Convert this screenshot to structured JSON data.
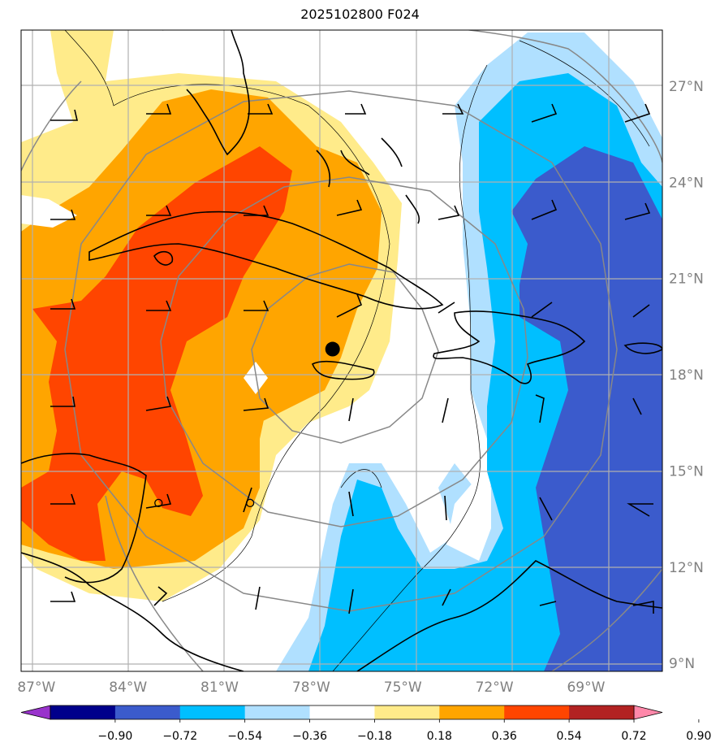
{
  "title": "2025102800 F024",
  "map": {
    "lon_range": [
      -87.5,
      -66.5
    ],
    "lat_range": [
      8.75,
      28.75
    ],
    "lon_ticks": [
      {
        "value": -87,
        "label": "87°W"
      },
      {
        "value": -84,
        "label": "84°W"
      },
      {
        "value": -81,
        "label": "81°W"
      },
      {
        "value": -78,
        "label": "78°W"
      },
      {
        "value": -75,
        "label": "75°W"
      },
      {
        "value": -72,
        "label": "72°W"
      },
      {
        "value": -69,
        "label": "69°W"
      }
    ],
    "lat_ticks": [
      {
        "value": 9,
        "label": "9°N"
      },
      {
        "value": 12,
        "label": "12°N"
      },
      {
        "value": 15,
        "label": "15°N"
      },
      {
        "value": 18,
        "label": "18°N"
      },
      {
        "value": 21,
        "label": "21°N"
      },
      {
        "value": 24,
        "label": "24°N"
      },
      {
        "value": 27,
        "label": "27°N"
      }
    ],
    "storm_center": {
      "lon": -77.3,
      "lat": 18.8
    },
    "range_ring_radii_deg": [
      3,
      6,
      9
    ],
    "markers": [
      {
        "lon": -83.0,
        "lat": 14.0
      },
      {
        "lon": -80.0,
        "lat": 14.0
      }
    ]
  },
  "colorbar": {
    "levels": [
      -0.9,
      -0.72,
      -0.54,
      -0.36,
      -0.18,
      0.18,
      0.36,
      0.54,
      0.72,
      0.9
    ],
    "labels": [
      "−0.90",
      "−0.72",
      "−0.54",
      "−0.36",
      "−0.18",
      "0.18",
      "0.36",
      "0.54",
      "0.72",
      "0.90"
    ],
    "colors": [
      "#9933cc",
      "#00008b",
      "#3b5bcc",
      "#00bfff",
      "#b0e0ff",
      "#ffffff",
      "#ffeb8a",
      "#ffa500",
      "#ff4500",
      "#b22222",
      "#ff88aa"
    ]
  }
}
